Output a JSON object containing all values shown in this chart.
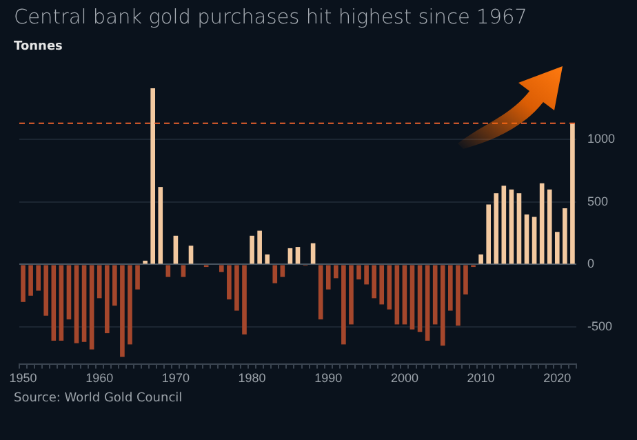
{
  "chart_data": {
    "type": "bar",
    "title": "Central bank gold purchases hit highest since 1967",
    "ylabel": "Tonnes",
    "categories": [
      "1950",
      null,
      null,
      null,
      null,
      null,
      null,
      null,
      null,
      null,
      "1960",
      null,
      null,
      null,
      null,
      null,
      null,
      null,
      null,
      null,
      "1970",
      null,
      null,
      null,
      null,
      null,
      null,
      null,
      null,
      null,
      "1980",
      null,
      null,
      null,
      null,
      null,
      null,
      null,
      null,
      null,
      "1990",
      null,
      null,
      null,
      null,
      null,
      null,
      null,
      null,
      null,
      "2000",
      null,
      null,
      null,
      null,
      null,
      null,
      null,
      null,
      null,
      "2010",
      null,
      null,
      null,
      null,
      null,
      null,
      null,
      null,
      null,
      "2020",
      null,
      null
    ],
    "values": [
      -300,
      -250,
      -210,
      -410,
      -610,
      -610,
      -440,
      -630,
      -620,
      -680,
      -270,
      -550,
      -330,
      -740,
      -640,
      -200,
      30,
      1410,
      620,
      -100,
      230,
      -100,
      150,
      0,
      -20,
      0,
      -60,
      -280,
      -370,
      -560,
      230,
      270,
      80,
      -150,
      -100,
      130,
      140,
      -10,
      170,
      -440,
      -200,
      -110,
      -640,
      -480,
      -120,
      -160,
      -270,
      -320,
      -360,
      -480,
      -480,
      -520,
      -540,
      -610,
      -480,
      -650,
      -370,
      -490,
      -240,
      -20,
      80,
      480,
      570,
      630,
      600,
      570,
      400,
      380,
      650,
      600,
      260,
      450,
      1130
    ],
    "colors": [
      "#a5472c",
      "#a5472c",
      "#a5472c",
      "#a5472c",
      "#a5472c",
      "#a5472c",
      "#a5472c",
      "#a5472c",
      "#a5472c",
      "#a5472c",
      "#a5472c",
      "#a5472c",
      "#a5472c",
      "#a5472c",
      "#a5472c",
      "#a5472c",
      "#f3c9a0",
      "#f3c9a0",
      "#f3c9a0",
      "#a5472c",
      "#f3c9a0",
      "#a5472c",
      "#f3c9a0",
      "#f3c9a0",
      "#a5472c",
      "#f3c9a0",
      "#a5472c",
      "#a5472c",
      "#a5472c",
      "#a5472c",
      "#f3c9a0",
      "#f3c9a0",
      "#f3c9a0",
      "#a5472c",
      "#a5472c",
      "#f3c9a0",
      "#f3c9a0",
      "#a5472c",
      "#f3c9a0",
      "#a5472c",
      "#a5472c",
      "#a5472c",
      "#a5472c",
      "#a5472c",
      "#a5472c",
      "#a5472c",
      "#a5472c",
      "#a5472c",
      "#a5472c",
      "#a5472c",
      "#a5472c",
      "#a5472c",
      "#a5472c",
      "#a5472c",
      "#a5472c",
      "#a5472c",
      "#a5472c",
      "#a5472c",
      "#a5472c",
      "#a5472c",
      "#f3c9a0",
      "#f3c9a0",
      "#f3c9a0",
      "#f3c9a0",
      "#f3c9a0",
      "#f3c9a0",
      "#f3c9a0",
      "#f3c9a0",
      "#f3c9a0",
      "#f3c9a0",
      "#f3c9a0",
      "#f3c9a0",
      "#f3c9a0"
    ],
    "ylim": [
      -800,
      1410
    ],
    "yticks": [
      -500,
      0,
      500,
      1000
    ],
    "grid": "y",
    "ref_lines": [
      {
        "axis": "y",
        "value": 1130,
        "color": "#e8612c",
        "line_style": "dashed"
      }
    ],
    "annotations": [
      "Source: World Gold Council"
    ]
  }
}
